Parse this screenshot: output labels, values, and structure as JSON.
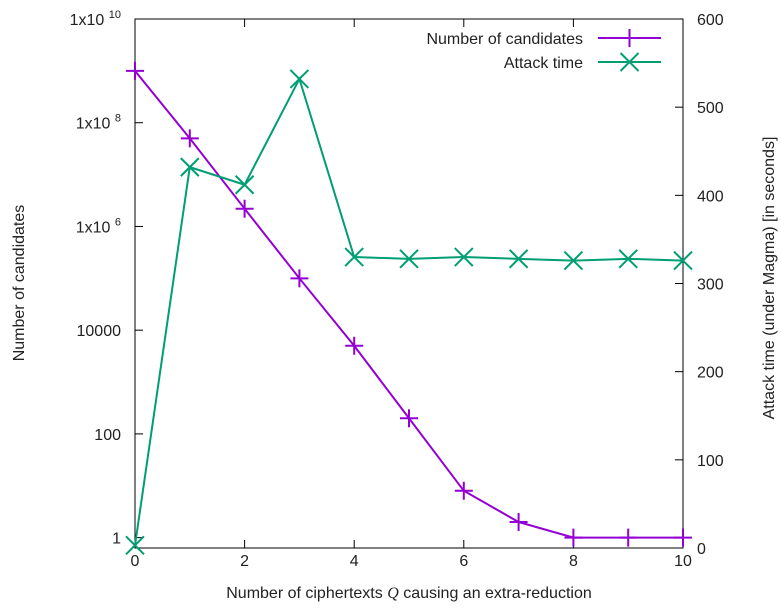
{
  "chart_data": {
    "type": "line",
    "title": "",
    "xlabel": "Number of ciphertexts Q causing an extra-reduction",
    "ylabel": "Number of candidates",
    "y2label": "Attack time (under Magma) [in seconds]",
    "x_ticks": [
      "0",
      "2",
      "4",
      "6",
      "8",
      "10"
    ],
    "xlim": [
      0,
      10
    ],
    "ylim_log10": [
      -0.2,
      10
    ],
    "y_scale": "log",
    "y_ticks": [
      {
        "label": "1",
        "value": 1
      },
      {
        "label": "100",
        "value": 100
      },
      {
        "label": "10000",
        "value": 10000
      },
      {
        "label": "1x10",
        "exp": "6",
        "value": 1000000
      },
      {
        "label": "1x10",
        "exp": "8",
        "value": 100000000
      },
      {
        "label": "1x10",
        "exp": "10",
        "value": 10000000000
      }
    ],
    "y2lim": [
      0,
      600
    ],
    "y2_ticks": [
      "0",
      "100",
      "200",
      "300",
      "400",
      "500",
      "600"
    ],
    "grid": false,
    "legend_position": "top-right",
    "series": [
      {
        "name": "Number of candidates",
        "axis": "left",
        "color": "#9400D3",
        "marker": "plus",
        "x": [
          0,
          1,
          2,
          3,
          4,
          5,
          6,
          7,
          8,
          9,
          10
        ],
        "y": [
          1000000000,
          50000000,
          2200000,
          100000,
          5000,
          200,
          8,
          2,
          1,
          1,
          1
        ]
      },
      {
        "name": "Attack time",
        "axis": "right",
        "color": "#009E73",
        "marker": "x",
        "x": [
          0,
          1,
          2,
          3,
          4,
          5,
          6,
          7,
          8,
          9,
          10
        ],
        "y": [
          3,
          432,
          412,
          532,
          330,
          328,
          330,
          328,
          326,
          328,
          326
        ]
      }
    ]
  }
}
